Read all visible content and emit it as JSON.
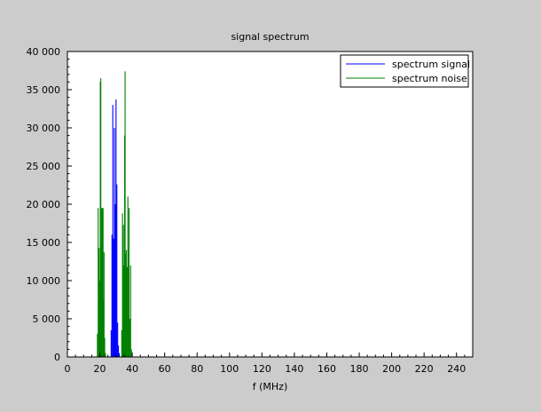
{
  "chart_data": {
    "type": "bar",
    "title": "signal spectrum",
    "xlabel": "f (MHz)",
    "ylabel": "",
    "xlim": [
      0,
      250
    ],
    "ylim": [
      0,
      40000
    ],
    "x_ticks": [
      0,
      20,
      40,
      60,
      80,
      100,
      120,
      140,
      160,
      180,
      200,
      220,
      240
    ],
    "x_tick_labels": [
      "0",
      "20",
      "40",
      "60",
      "80",
      "100",
      "120",
      "140",
      "160",
      "180",
      "200",
      "220",
      "240"
    ],
    "y_ticks": [
      0,
      5000,
      10000,
      15000,
      20000,
      25000,
      30000,
      35000,
      40000
    ],
    "y_tick_labels": [
      "0",
      "5 000",
      "10 000",
      "15 000",
      "20 000",
      "25 000",
      "30 000",
      "35 000",
      "40 000"
    ],
    "legend_position": "top-right",
    "grid": false,
    "series": [
      {
        "name": "spectrum signal",
        "color": "#0000ff",
        "x": [
          27.0,
          27.5,
          28.0,
          28.5,
          29.0,
          29.5,
          30.0,
          30.5,
          31.0,
          31.5,
          32.0
        ],
        "values": [
          3500,
          16000,
          33000,
          15500,
          30000,
          20000,
          33700,
          22600,
          4500,
          1500,
          500
        ]
      },
      {
        "name": "spectrum noise",
        "color": "#008000",
        "x": [
          18.5,
          19.0,
          19.5,
          20.0,
          20.3,
          20.6,
          21.0,
          21.3,
          21.6,
          22.0,
          22.3,
          22.6,
          23.0,
          23.5,
          33.5,
          34.0,
          34.5,
          35.0,
          35.3,
          35.6,
          36.0,
          36.3,
          36.6,
          37.0,
          37.3,
          37.6,
          38.0,
          38.5,
          39.0,
          39.5
        ],
        "values": [
          3000,
          19500,
          14300,
          10000,
          36000,
          36500,
          19500,
          14000,
          19500,
          19500,
          7500,
          13700,
          2500,
          500,
          3500,
          18800,
          17300,
          12000,
          29000,
          37400,
          13500,
          14000,
          11700,
          11800,
          21000,
          14000,
          19500,
          5000,
          12000,
          1000
        ]
      }
    ]
  }
}
